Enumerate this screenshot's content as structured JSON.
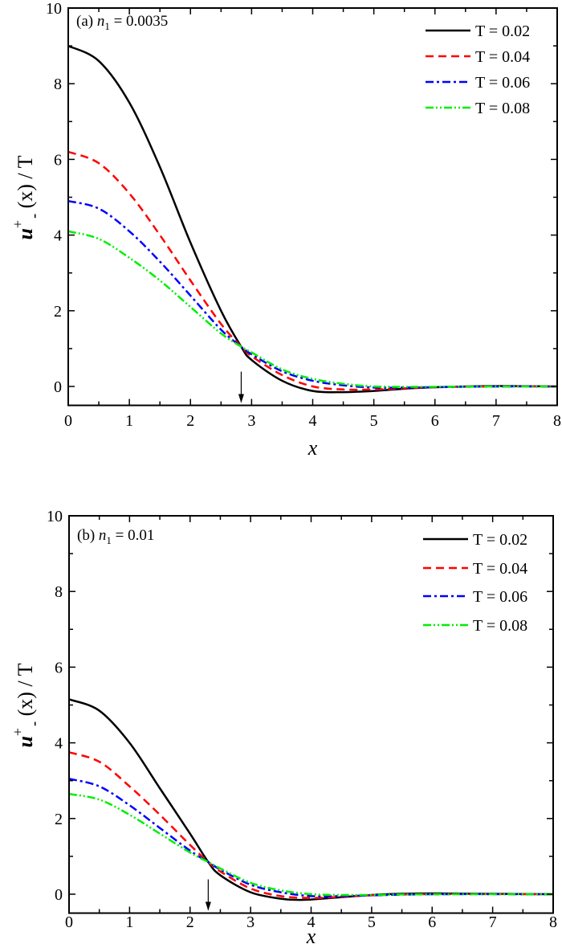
{
  "chart_data": [
    {
      "type": "line",
      "annotation": {
        "prefix": "(a) ",
        "var": "n",
        "sub": "1",
        "value": " = 0.0035"
      },
      "xlabel": "x",
      "ylabel": {
        "main": "u",
        "sup": "+",
        "sub": "-",
        "rest": "(x) / T"
      },
      "xlim": [
        0,
        8
      ],
      "ylim": [
        -0.5,
        10
      ],
      "xticks": [
        0,
        1,
        2,
        3,
        4,
        5,
        6,
        7,
        8
      ],
      "yticks": [
        0,
        2,
        4,
        6,
        8,
        10
      ],
      "legend_position": "top-right",
      "arrow_x": 2.83,
      "series": [
        {
          "name": "T = 0.02",
          "color": "#000000",
          "dash": "solid",
          "x": [
            0,
            0.5,
            1,
            1.5,
            2,
            2.5,
            2.83,
            3,
            3.5,
            4,
            4.5,
            5,
            5.5,
            6,
            7,
            8
          ],
          "y": [
            9.0,
            8.6,
            7.5,
            5.8,
            3.8,
            2.0,
            1.05,
            0.7,
            0.15,
            -0.12,
            -0.15,
            -0.12,
            -0.06,
            -0.02,
            0.01,
            0
          ]
        },
        {
          "name": "T = 0.04",
          "color": "#ff0000",
          "dash": "dash",
          "x": [
            0,
            0.5,
            1,
            1.5,
            2,
            2.5,
            2.83,
            3,
            3.5,
            4,
            4.5,
            5,
            5.5,
            6,
            7,
            8
          ],
          "y": [
            6.2,
            5.9,
            5.1,
            4.0,
            2.8,
            1.65,
            1.05,
            0.8,
            0.3,
            0.0,
            -0.08,
            -0.08,
            -0.05,
            -0.02,
            0,
            0
          ]
        },
        {
          "name": "T = 0.06",
          "color": "#0000ff",
          "dash": "dashdot",
          "x": [
            0,
            0.5,
            1,
            1.5,
            2,
            2.5,
            2.83,
            3,
            3.5,
            4,
            4.5,
            5,
            5.5,
            6,
            7,
            8
          ],
          "y": [
            4.9,
            4.7,
            4.1,
            3.3,
            2.4,
            1.5,
            1.05,
            0.85,
            0.4,
            0.15,
            0.03,
            -0.03,
            -0.03,
            -0.02,
            0,
            0
          ]
        },
        {
          "name": "T = 0.08",
          "color": "#00ee00",
          "dash": "dashdotdot",
          "x": [
            0,
            0.5,
            1,
            1.5,
            2,
            2.5,
            2.83,
            3,
            3.5,
            4,
            4.5,
            5,
            5.5,
            6,
            7,
            8
          ],
          "y": [
            4.1,
            3.9,
            3.4,
            2.8,
            2.1,
            1.4,
            1.05,
            0.9,
            0.45,
            0.2,
            0.07,
            0.0,
            -0.01,
            -0.01,
            0,
            0
          ]
        }
      ]
    },
    {
      "type": "line",
      "annotation": {
        "prefix": "(b) ",
        "var": "n",
        "sub": "1",
        "value": " = 0.01"
      },
      "xlabel": "x",
      "ylabel": {
        "main": "u",
        "sup": "+",
        "sub": "-",
        "rest": "(x) / T"
      },
      "xlim": [
        0,
        8
      ],
      "ylim": [
        -0.5,
        10
      ],
      "xticks": [
        0,
        1,
        2,
        3,
        4,
        5,
        6,
        7,
        8
      ],
      "yticks": [
        0,
        2,
        4,
        6,
        8,
        10
      ],
      "legend_position": "top-right",
      "arrow_x": 2.3,
      "series": [
        {
          "name": "T = 0.02",
          "color": "#000000",
          "dash": "solid",
          "x": [
            0,
            0.5,
            1,
            1.5,
            2,
            2.3,
            2.5,
            3,
            3.5,
            3.8,
            4,
            4.5,
            5,
            5.5,
            6,
            7,
            8
          ],
          "y": [
            5.15,
            4.85,
            4.0,
            2.8,
            1.6,
            0.85,
            0.5,
            0.05,
            -0.12,
            -0.15,
            -0.14,
            -0.08,
            -0.02,
            0.01,
            0.02,
            0.01,
            0
          ]
        },
        {
          "name": "T = 0.04",
          "color": "#ff0000",
          "dash": "dash",
          "x": [
            0,
            0.5,
            1,
            1.5,
            2,
            2.3,
            2.5,
            3,
            3.5,
            4,
            4.5,
            5,
            6,
            8
          ],
          "y": [
            3.75,
            3.5,
            2.85,
            2.1,
            1.3,
            0.85,
            0.6,
            0.15,
            -0.05,
            -0.1,
            -0.07,
            -0.03,
            0,
            0
          ]
        },
        {
          "name": "T = 0.06",
          "color": "#0000ff",
          "dash": "dashdot",
          "x": [
            0,
            0.5,
            1,
            1.5,
            2,
            2.3,
            2.5,
            3,
            3.5,
            4,
            4.5,
            5,
            6,
            8
          ],
          "y": [
            3.05,
            2.85,
            2.35,
            1.75,
            1.15,
            0.85,
            0.65,
            0.25,
            0.05,
            -0.05,
            -0.05,
            -0.03,
            0,
            0
          ]
        },
        {
          "name": "T = 0.08",
          "color": "#00ee00",
          "dash": "dashdotdot",
          "x": [
            0,
            0.5,
            1,
            1.5,
            2,
            2.3,
            2.5,
            3,
            3.5,
            4,
            4.5,
            5,
            6,
            8
          ],
          "y": [
            2.65,
            2.5,
            2.1,
            1.6,
            1.1,
            0.85,
            0.68,
            0.3,
            0.1,
            0.0,
            -0.02,
            -0.02,
            0,
            0
          ]
        }
      ]
    }
  ]
}
